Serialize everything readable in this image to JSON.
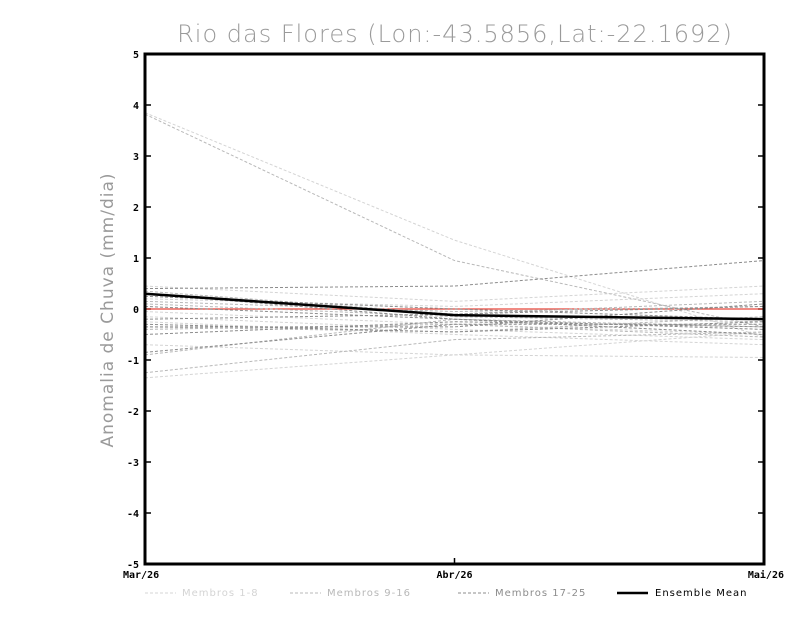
{
  "chart_data": {
    "type": "line",
    "title": "Rio das Flores (Lon:-43.5856,Lat:-22.1692)",
    "xlabel": "",
    "ylabel": "Anomalia de Chuva (mm/dia)",
    "categories": [
      "Mar/26",
      "Abr/26",
      "Mai/26"
    ],
    "ylim": [
      -5,
      5
    ],
    "yticks": [
      "5",
      "4",
      "3",
      "2",
      "1",
      "0",
      "-1",
      "-2",
      "-3",
      "-4",
      "-5"
    ],
    "zero_line_color": "#e8463a",
    "groups": [
      {
        "name": "Membros 1-8",
        "color": "#d4d4d4",
        "members": [
          [
            3.85,
            1.35,
            -0.55
          ],
          [
            -0.7,
            -0.9,
            -0.95
          ],
          [
            -0.15,
            -0.4,
            -0.6
          ],
          [
            -1.35,
            -0.9,
            -0.45
          ],
          [
            0.45,
            0.15,
            0.45
          ],
          [
            -0.05,
            -0.3,
            -0.5
          ],
          [
            -0.25,
            -0.5,
            -0.7
          ],
          [
            0.2,
            0.05,
            0.3
          ]
        ]
      },
      {
        "name": "Membros 9-16",
        "color": "#b8b8b8",
        "members": [
          [
            3.82,
            0.95,
            -0.35
          ],
          [
            -1.25,
            -0.6,
            -0.45
          ],
          [
            -0.9,
            -0.2,
            -0.35
          ],
          [
            0.35,
            -0.1,
            0.15
          ],
          [
            -0.35,
            -0.45,
            -0.15
          ],
          [
            0.1,
            -0.15,
            -0.25
          ],
          [
            -0.4,
            -0.3,
            -0.55
          ],
          [
            0.15,
            -0.05,
            0.05
          ]
        ]
      },
      {
        "name": "Membros 17-25",
        "color": "#8c8c8c",
        "members": [
          [
            0.4,
            0.45,
            0.95
          ],
          [
            -0.85,
            -0.3,
            -0.3
          ],
          [
            -0.35,
            -0.35,
            0.1
          ],
          [
            0.3,
            -0.2,
            -0.5
          ],
          [
            -0.3,
            -0.45,
            -0.25
          ],
          [
            0.05,
            -0.2,
            -0.4
          ],
          [
            -0.2,
            -0.1,
            0.05
          ],
          [
            0.25,
            0.0,
            -0.2
          ],
          [
            -0.5,
            -0.25,
            -0.35
          ]
        ]
      }
    ],
    "ensemble_mean": {
      "name": "Ensemble Mean",
      "color": "#000000",
      "values": [
        0.3,
        -0.12,
        -0.2
      ]
    },
    "legend_position": "bottom"
  }
}
